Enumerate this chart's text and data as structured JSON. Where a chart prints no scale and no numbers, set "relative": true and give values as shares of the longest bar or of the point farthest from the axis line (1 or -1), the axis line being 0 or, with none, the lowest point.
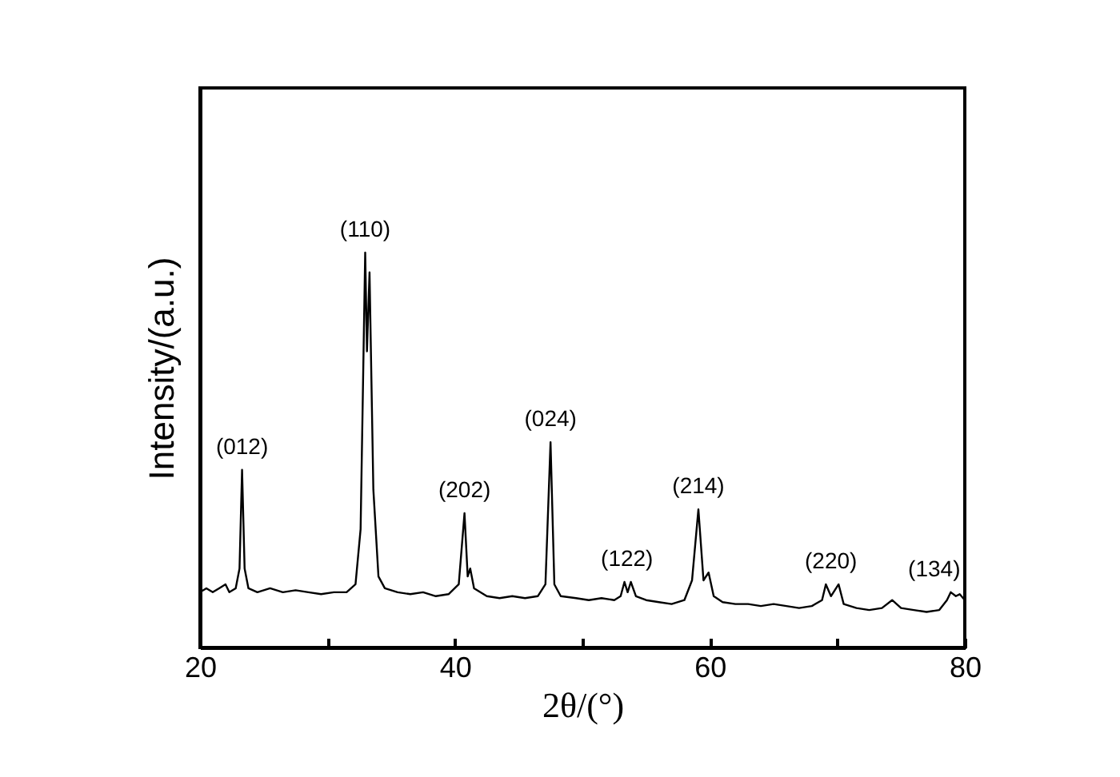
{
  "chart_data": {
    "type": "line",
    "relative": true,
    "xlabel": "2θ/(°)",
    "ylabel": "Intensity/(a.u.)",
    "xlim": [
      20,
      80
    ],
    "xticks": [
      20,
      {
        "value": 30,
        "label": null
      },
      40,
      {
        "value": 50,
        "label": null
      },
      60,
      {
        "value": 70,
        "label": null
      },
      80
    ],
    "grid": false,
    "annotations": [
      {
        "text": "(012)",
        "x": 23.3,
        "y": 0.45
      },
      {
        "text": "(110)",
        "x": 32.96,
        "y": 1.0
      },
      {
        "text": "(202)",
        "x": 40.75,
        "y": 0.34
      },
      {
        "text": "(024)",
        "x": 47.5,
        "y": 0.52
      },
      {
        "text": "(122)",
        "x": 53.5,
        "y": 0.166
      },
      {
        "text": "(214)",
        "x": 59.1,
        "y": 0.35
      },
      {
        "text": "(220)",
        "x": 69.5,
        "y": 0.16
      },
      {
        "text": "(134)",
        "x": 78.9,
        "y": 0.14
      }
    ],
    "series": [
      {
        "color": "#000000",
        "x": [
          20,
          20.5,
          21,
          21.5,
          22,
          22.3,
          22.8,
          23.1,
          23.3,
          23.5,
          23.8,
          24.5,
          25.5,
          26.5,
          27.5,
          28.5,
          29.5,
          30.5,
          31.5,
          32.2,
          32.6,
          32.96,
          33.1,
          33.3,
          33.6,
          34,
          34.5,
          35.5,
          36.5,
          37.5,
          38.5,
          39.5,
          40.3,
          40.75,
          41.0,
          41.2,
          41.5,
          42.5,
          43.5,
          44.5,
          45.5,
          46.5,
          47.1,
          47.5,
          47.8,
          48.3,
          49.5,
          50.5,
          51.5,
          52.5,
          53.0,
          53.3,
          53.55,
          53.8,
          54.2,
          55,
          56,
          57,
          58,
          58.6,
          59.1,
          59.5,
          59.9,
          60.3,
          61,
          62,
          63,
          64,
          65,
          66,
          67,
          68,
          68.8,
          69.1,
          69.5,
          70.1,
          70.5,
          71.5,
          72.5,
          73.5,
          74.3,
          75,
          76,
          77,
          78,
          78.6,
          78.9,
          79.3,
          79.6,
          80
        ],
        "values": [
          0.14,
          0.15,
          0.14,
          0.15,
          0.16,
          0.14,
          0.15,
          0.2,
          0.45,
          0.2,
          0.15,
          0.14,
          0.15,
          0.14,
          0.145,
          0.14,
          0.135,
          0.14,
          0.14,
          0.16,
          0.3,
          1.0,
          0.75,
          0.95,
          0.4,
          0.18,
          0.15,
          0.14,
          0.135,
          0.14,
          0.13,
          0.135,
          0.16,
          0.34,
          0.18,
          0.2,
          0.15,
          0.13,
          0.125,
          0.13,
          0.125,
          0.13,
          0.16,
          0.52,
          0.16,
          0.13,
          0.125,
          0.12,
          0.125,
          0.12,
          0.13,
          0.166,
          0.14,
          0.166,
          0.13,
          0.12,
          0.115,
          0.11,
          0.12,
          0.17,
          0.35,
          0.17,
          0.19,
          0.13,
          0.115,
          0.11,
          0.11,
          0.105,
          0.11,
          0.105,
          0.1,
          0.105,
          0.12,
          0.16,
          0.13,
          0.16,
          0.11,
          0.1,
          0.095,
          0.1,
          0.12,
          0.1,
          0.095,
          0.09,
          0.095,
          0.12,
          0.14,
          0.13,
          0.135,
          0.12
        ]
      }
    ]
  }
}
